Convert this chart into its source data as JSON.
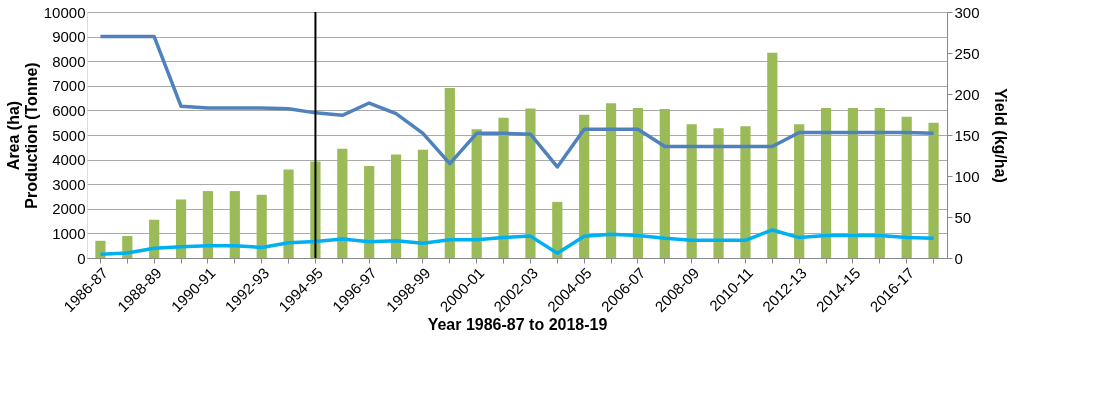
{
  "chart_data": {
    "type": "bar",
    "xlabel": "Year 1986-87 to 2018-19",
    "ylabel": "Area (ha)\nProduction (Tonne)",
    "y2label": "Yield (kg/ha)",
    "categories": [
      "1986-87",
      null,
      "1988-89",
      null,
      "1990-91",
      null,
      "1992-93",
      null,
      "1994-95",
      null,
      "1996-97",
      null,
      "1998-99",
      null,
      "2000-01",
      null,
      "2002-03",
      null,
      "2004-05",
      null,
      "2006-07",
      null,
      "2008-09",
      null,
      "2010-11",
      null,
      "2012-13",
      null,
      "2014-15",
      null,
      "2016-17",
      null
    ],
    "series": [
      {
        "color": "#9bbb59",
        "values": [
          700,
          890,
          1550,
          2380,
          2720,
          2720,
          2570,
          3600,
          3920,
          4440,
          3740,
          4210,
          4400,
          6910,
          5230,
          5700,
          6080,
          2280,
          5820,
          6290,
          6100,
          6060,
          5440,
          5270,
          5360,
          8340,
          5440,
          6100,
          6100,
          6100,
          5740,
          5500
        ]
      },
      {
        "type": "line",
        "axis": "y2",
        "color": "#4f81bd",
        "values": [
          270,
          270,
          270,
          185,
          183,
          183,
          183,
          182,
          177,
          174,
          189,
          176,
          152,
          115,
          152,
          152,
          151,
          111,
          157,
          157,
          157,
          136,
          136,
          136,
          136,
          136,
          153,
          153,
          153,
          153,
          153,
          152
        ]
      },
      {
        "type": "line",
        "color": "#00b0f0",
        "values": [
          150,
          200,
          400,
          460,
          500,
          500,
          430,
          620,
          670,
          770,
          660,
          700,
          600,
          740,
          740,
          830,
          890,
          190,
          880,
          970,
          910,
          800,
          720,
          720,
          720,
          1140,
          830,
          910,
          910,
          910,
          830,
          800
        ]
      }
    ],
    "ylim": [
      0,
      10000
    ],
    "yticks": [
      0,
      1000,
      2000,
      3000,
      4000,
      5000,
      6000,
      7000,
      8000,
      9000,
      10000
    ],
    "y2lim": [
      0,
      300
    ],
    "y2ticks": [
      0,
      50,
      100,
      150,
      200,
      250,
      300
    ],
    "grid": "y",
    "ref_lines": [
      {
        "axis": "x",
        "value": "1994-95",
        "color": "#000000"
      }
    ]
  }
}
